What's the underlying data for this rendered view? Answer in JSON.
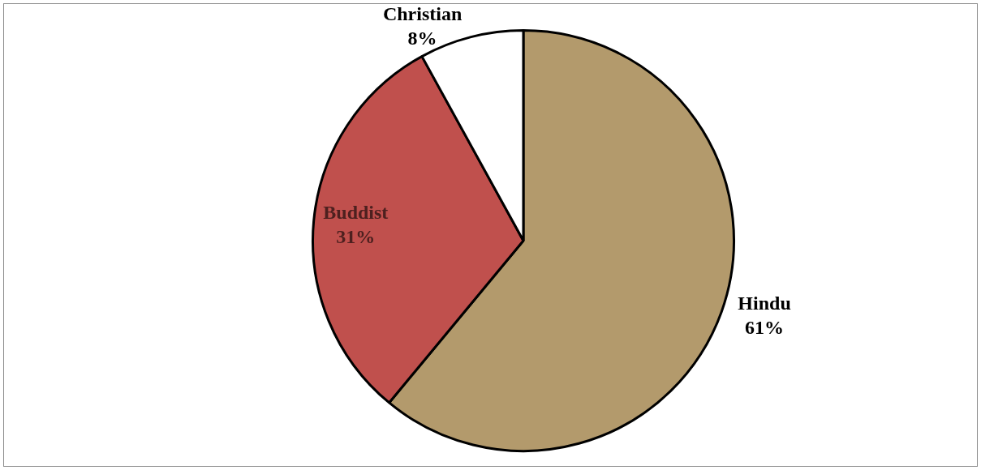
{
  "chart_data": {
    "type": "pie",
    "categories": [
      "Hindu",
      "Buddist",
      "Christian"
    ],
    "values": [
      61,
      31,
      8
    ],
    "colors": [
      "#b39a6c",
      "#c0504d",
      "#ffffff"
    ],
    "value_labels": [
      "61%",
      "31%",
      "8%"
    ],
    "legend": false
  }
}
